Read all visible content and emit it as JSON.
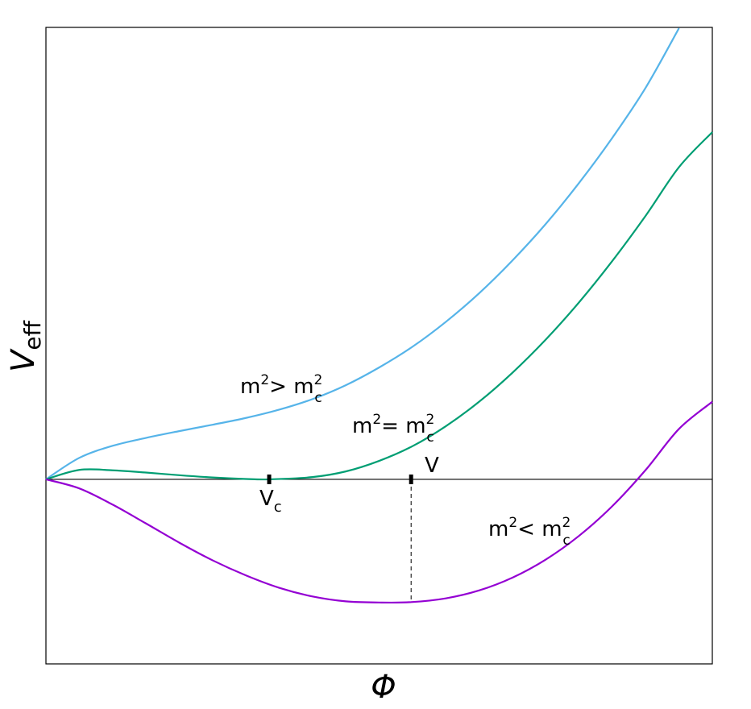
{
  "chart_data": {
    "type": "line",
    "title": "",
    "xlabel": "Φ",
    "ylabel_main": "V",
    "ylabel_sub": "eff",
    "xlim": [
      0,
      1
    ],
    "ylim": [
      -0.49,
      1.2
    ],
    "grid": false,
    "legend": "none",
    "zero_line": true,
    "series": [
      {
        "label_main": "m",
        "label_sup": "2",
        "label_rel": "> ",
        "label_main2": "m",
        "label_sup2": "2",
        "label_sub2": "c",
        "color": "#56B4E9",
        "x": [
          0,
          0.05,
          0.1,
          0.15,
          0.2,
          0.25,
          0.3,
          0.35,
          0.4,
          0.45,
          0.5,
          0.55,
          0.6,
          0.65,
          0.7,
          0.75,
          0.8,
          0.85,
          0.9,
          0.95
        ],
        "y": [
          0,
          0.057,
          0.089,
          0.11,
          0.128,
          0.145,
          0.163,
          0.185,
          0.213,
          0.25,
          0.297,
          0.352,
          0.418,
          0.494,
          0.581,
          0.678,
          0.787,
          0.907,
          1.04,
          1.198
        ]
      },
      {
        "label_main": "m",
        "label_sup": "2",
        "label_rel": "= ",
        "label_main2": "m",
        "label_sup2": "2",
        "label_sub2": "c",
        "color": "#009E73",
        "x": [
          0,
          0.05,
          0.1,
          0.15,
          0.2,
          0.25,
          0.3,
          0.335,
          0.4,
          0.45,
          0.5,
          0.55,
          0.6,
          0.65,
          0.7,
          0.75,
          0.8,
          0.85,
          0.9,
          0.95,
          1.0
        ],
        "y": [
          0,
          0.025,
          0.024,
          0.018,
          0.011,
          0.005,
          0.001,
          0,
          0.006,
          0.021,
          0.049,
          0.088,
          0.141,
          0.206,
          0.283,
          0.371,
          0.47,
          0.58,
          0.7,
          0.829,
          0.922
        ]
      },
      {
        "label_main": "m",
        "label_sup": "2",
        "label_rel": "< ",
        "label_main2": "m",
        "label_sup2": "2",
        "label_sub2": "c",
        "color": "#9400D3",
        "x": [
          0,
          0.05,
          0.1,
          0.15,
          0.2,
          0.25,
          0.3,
          0.35,
          0.4,
          0.45,
          0.5,
          0.548,
          0.6,
          0.65,
          0.7,
          0.75,
          0.8,
          0.85,
          0.9,
          0.95,
          1.0
        ],
        "y": [
          0,
          -0.024,
          -0.067,
          -0.117,
          -0.168,
          -0.215,
          -0.255,
          -0.288,
          -0.311,
          -0.324,
          -0.327,
          -0.326,
          -0.316,
          -0.295,
          -0.261,
          -0.213,
          -0.15,
          -0.071,
          0.025,
          0.134,
          0.206
        ]
      }
    ],
    "markers": [
      {
        "x": 0.335,
        "y": 0,
        "label_main": "V",
        "label_sub": "c"
      },
      {
        "x": 0.548,
        "y": 0,
        "label_main": "V",
        "label_sub": ""
      }
    ],
    "dashed_line": {
      "x": 0.548,
      "y_from": 0,
      "y_to": -0.326
    }
  }
}
